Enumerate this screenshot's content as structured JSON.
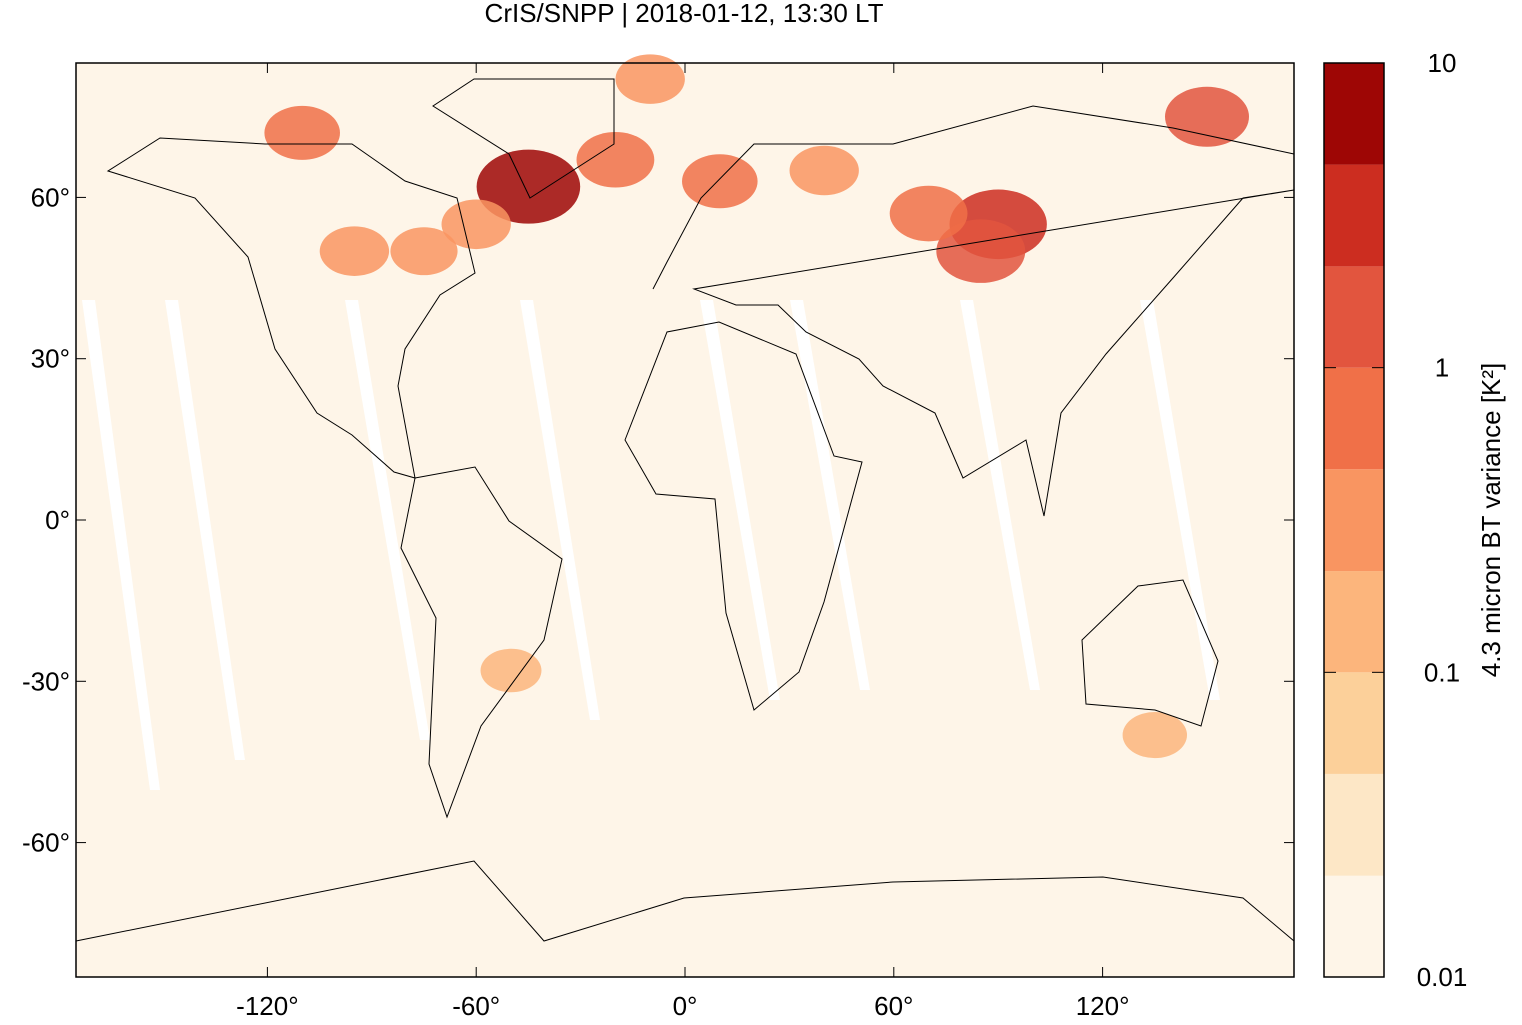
{
  "chart_data": {
    "type": "map",
    "title": "CrIS/SNPP | 2018-01-12, 13:30 LT",
    "xlim": [
      -175,
      175
    ],
    "ylim": [
      -85,
      85
    ],
    "xticks": [
      {
        "value": -120,
        "label": "-120°"
      },
      {
        "value": -60,
        "label": "-60°"
      },
      {
        "value": 0,
        "label": "0°"
      },
      {
        "value": 60,
        "label": "60°"
      },
      {
        "value": 120,
        "label": "120°"
      }
    ],
    "yticks": [
      {
        "value": -60,
        "label": "-60°"
      },
      {
        "value": -30,
        "label": "-30°"
      },
      {
        "value": 0,
        "label": "0°"
      },
      {
        "value": 30,
        "label": "30°"
      },
      {
        "value": 60,
        "label": "60°"
      }
    ],
    "x": [
      -45,
      90,
      85,
      150,
      -110,
      -20,
      10,
      40,
      70,
      -95,
      -75,
      -60,
      135,
      -50,
      -10
    ],
    "y": [
      62,
      55,
      50,
      75,
      72,
      67,
      63,
      65,
      57,
      50,
      50,
      55,
      -40,
      -28,
      82
    ],
    "values": [
      5,
      3,
      1.5,
      1,
      0.5,
      0.6,
      0.5,
      0.3,
      0.6,
      0.3,
      0.25,
      0.3,
      0.2,
      0.15,
      0.3
    ],
    "colorbar": {
      "label": "4.3 micron BT variance [K²]",
      "log": true,
      "lim": [
        0.01,
        10
      ],
      "ticks": [
        0.01,
        0.1,
        1,
        10
      ],
      "levels": [
        0.01,
        0.0215,
        0.0464,
        0.1,
        0.215,
        0.464,
        1,
        2.15,
        4.64,
        10
      ],
      "colors": [
        "#fef5e8",
        "#fde7c6",
        "#fcd09a",
        "#fcb57c",
        "#f99561",
        "#f07048",
        "#e2553e",
        "#cc2d20",
        "#9e0605"
      ]
    }
  }
}
